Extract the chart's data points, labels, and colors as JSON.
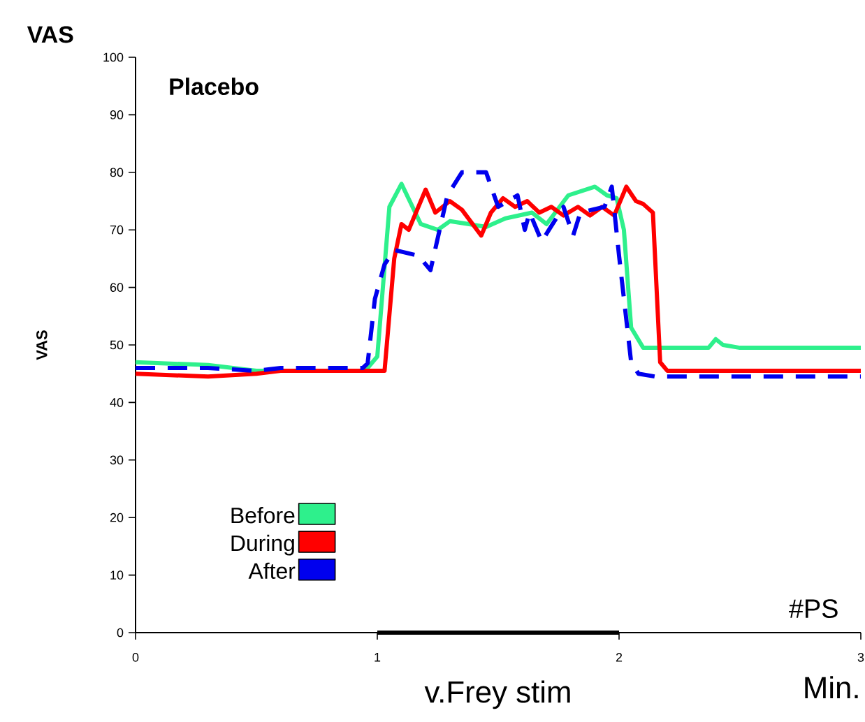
{
  "chart_data": {
    "type": "line",
    "title": "VAS",
    "ylabel": "VAS",
    "xlabel": "Min.",
    "annotations": [
      "Placebo",
      "#PS",
      "v.Frey stim"
    ],
    "xlim": [
      0,
      3
    ],
    "xticks": [
      0,
      1,
      2,
      3
    ],
    "ylim": [
      0,
      100
    ],
    "yticks": [
      0,
      10,
      20,
      30,
      40,
      50,
      60,
      70,
      80,
      90,
      100
    ],
    "grid": false,
    "legend": "bottom left",
    "marker": "none",
    "series": [
      {
        "name": "Before",
        "color": "#2ef08c",
        "line_style": "solid",
        "x": [
          0,
          0.3,
          0.5,
          0.95,
          1.0,
          1.05,
          1.1,
          1.18,
          1.25,
          1.3,
          1.38,
          1.45,
          1.53,
          1.64,
          1.7,
          1.79,
          1.9,
          1.95,
          1.99,
          2.02,
          2.05,
          2.1,
          2.37,
          2.4,
          2.43,
          2.5,
          3
        ],
        "values": [
          47,
          46.5,
          45.5,
          45.5,
          48,
          74,
          78,
          71,
          70,
          71.5,
          71,
          70.5,
          72,
          73,
          71,
          76,
          77.5,
          76,
          75.5,
          70,
          53,
          49.5,
          49.5,
          51,
          50,
          49.5,
          49.5
        ]
      },
      {
        "name": "During",
        "color": "#ff0000",
        "line_style": "solid",
        "x": [
          0,
          0.3,
          0.5,
          0.6,
          1.03,
          1.07,
          1.1,
          1.13,
          1.2,
          1.24,
          1.3,
          1.35,
          1.43,
          1.47,
          1.52,
          1.57,
          1.62,
          1.67,
          1.72,
          1.77,
          1.83,
          1.88,
          1.93,
          1.98,
          2.03,
          2.07,
          2.1,
          2.14,
          2.17,
          2.2,
          3
        ],
        "values": [
          45,
          44.5,
          45,
          45.5,
          45.5,
          65,
          71,
          70,
          77,
          73,
          75,
          73.5,
          69,
          73,
          75.5,
          74,
          75,
          73,
          74,
          72.5,
          74,
          72.5,
          74,
          72.5,
          77.5,
          75,
          74.5,
          73,
          47,
          45.5,
          45.5
        ]
      },
      {
        "color": "#000000",
        "line_style": "solid",
        "x": [
          1,
          2
        ],
        "values": [
          0,
          0
        ]
      },
      {
        "name": "After",
        "color": "#0000ee",
        "line_style": "dashed",
        "x": [
          0,
          0.3,
          0.5,
          0.6,
          0.94,
          0.96,
          0.99,
          1.03,
          1.07,
          1.17,
          1.22,
          1.29,
          1.35,
          1.45,
          1.5,
          1.58,
          1.61,
          1.63,
          1.68,
          1.71,
          1.77,
          1.81,
          1.84,
          1.94,
          1.97,
          2.0,
          2.05,
          2.08,
          2.15,
          3
        ],
        "values": [
          46,
          46,
          45.5,
          46,
          46,
          46.8,
          58,
          64,
          66.5,
          65.5,
          63,
          76,
          80,
          80,
          74,
          76,
          70,
          73,
          68,
          70,
          74,
          69,
          73,
          74,
          77.5,
          65.5,
          47,
          45,
          44.5,
          44.5
        ]
      }
    ]
  }
}
